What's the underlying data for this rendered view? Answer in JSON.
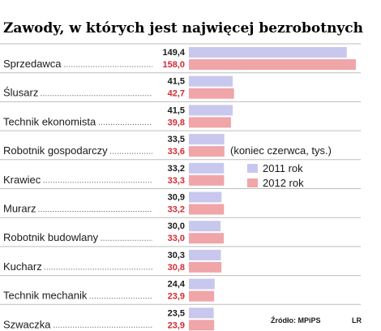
{
  "chart_data": {
    "type": "bar",
    "title": "Zawody, w których jest najwięcej bezrobotnych",
    "subtitle": "(koniec czerwca, tys.)",
    "categories": [
      "Sprzedawca",
      "Ślusarz",
      "Technik ekonomista",
      "Robotnik gospodarczy",
      "Krawiec",
      "Murarz",
      "Robotnik budowlany",
      "Kucharz",
      "Technik mechanik",
      "Szwaczka"
    ],
    "series": [
      {
        "name": "2011 rok",
        "color": "#c8c8ee",
        "values": [
          149.4,
          41.5,
          41.5,
          33.5,
          33.2,
          30.9,
          30.0,
          30.3,
          24.4,
          23.5
        ],
        "labels": [
          "149,4",
          "41,5",
          "41,5",
          "33,5",
          "33,2",
          "30,9",
          "30,0",
          "30,3",
          "24,4",
          "23,5"
        ]
      },
      {
        "name": "2012 rok",
        "color": "#f0a5a8",
        "label_color": "#d42a35",
        "values": [
          158.0,
          42.7,
          39.8,
          33.6,
          33.3,
          33.2,
          33.0,
          30.8,
          23.9,
          23.9
        ],
        "labels": [
          "158,0",
          "42,7",
          "39,8",
          "33,6",
          "33,3",
          "33,2",
          "33,0",
          "30,8",
          "23,9",
          "23,9"
        ]
      }
    ],
    "xlim": [
      0,
      158.0
    ],
    "legend_position": "right",
    "source": "Źródło: MPiPS",
    "credit": "LR",
    "leader_color": "#444444",
    "separator_color": "#bdbdbd"
  }
}
